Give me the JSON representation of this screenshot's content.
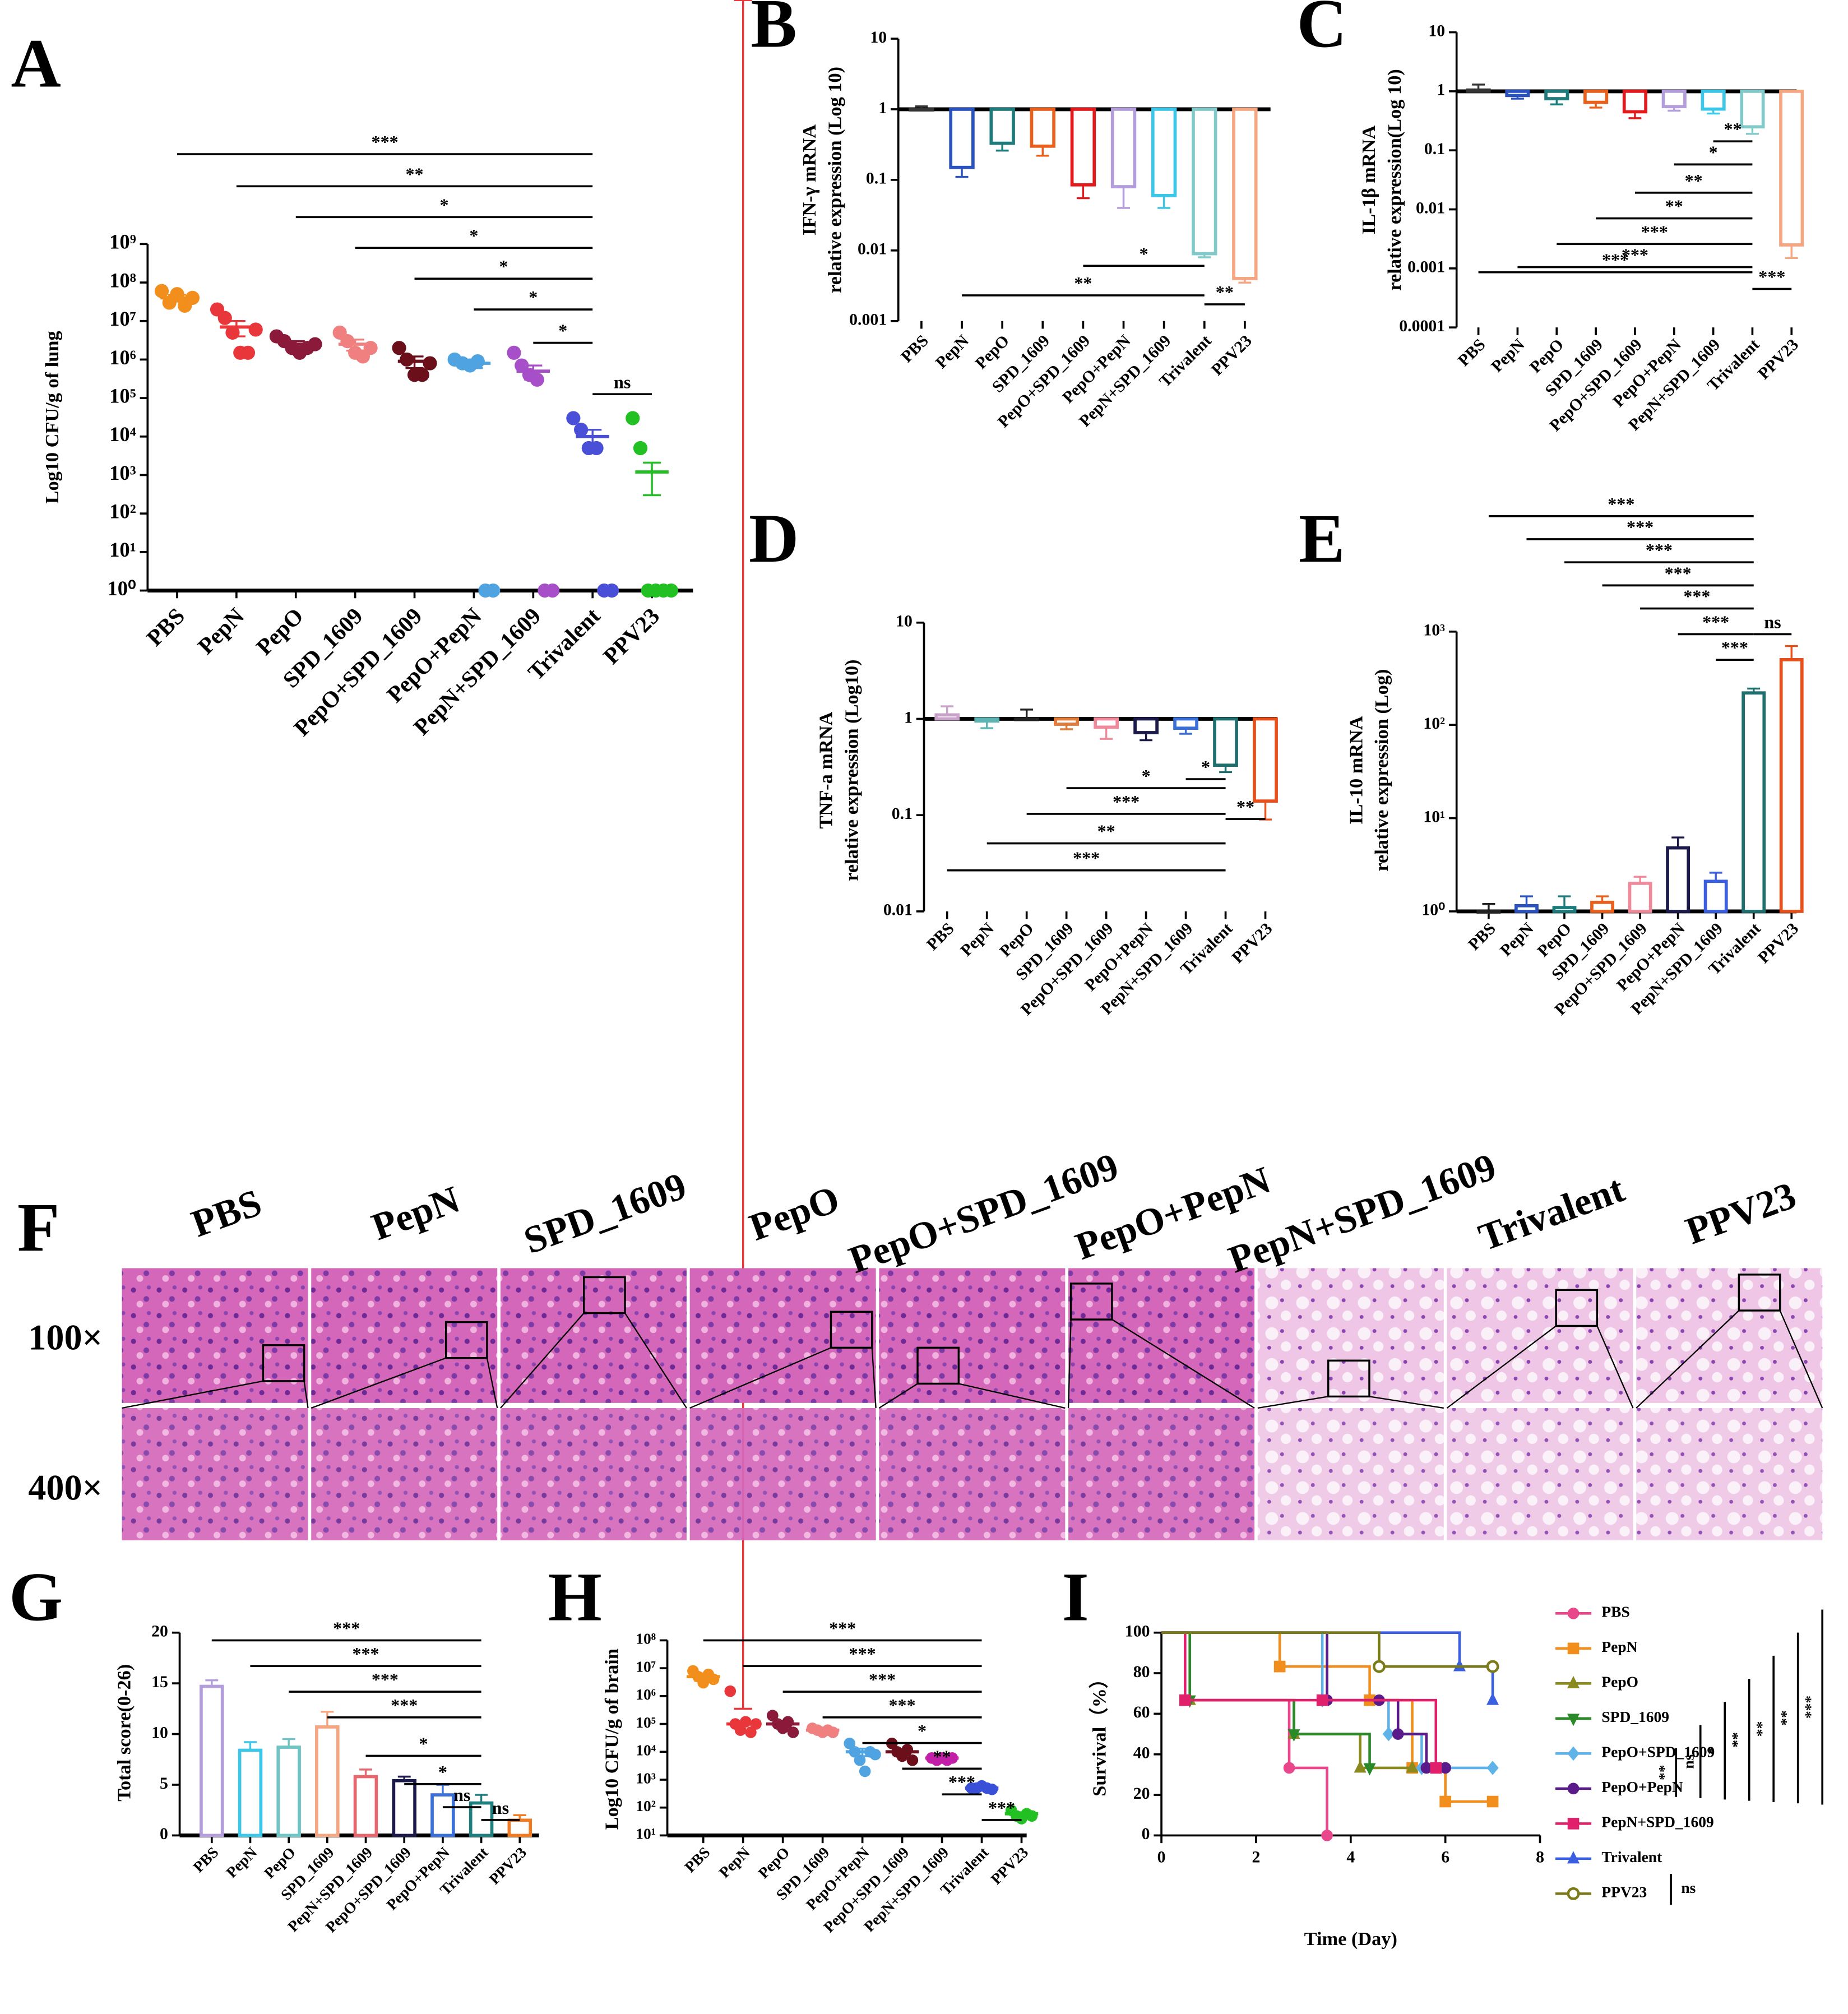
{
  "chart_data": [
    {
      "panel": "A",
      "type": "scatter",
      "ylabel": "Log10 CFU/g of lung",
      "log": true,
      "categories": [
        "PBS",
        "PepN",
        "PepO",
        "SPD_1609",
        "PepO+SPD_1609",
        "PepO+PepN",
        "PepN+SPD_1609",
        "Trivalent",
        "PPV23"
      ],
      "colors": [
        "#f28e1c",
        "#e8363a",
        "#8b1a3a",
        "#f08080",
        "#6b0f1a",
        "#4fa3e0",
        "#a64fc8",
        "#4a4fd8",
        "#22c022"
      ],
      "values": [
        40000000.0,
        7000000.0,
        2500000.0,
        2500000.0,
        900000.0,
        800000.0,
        500000.0,
        10000.0,
        1200.0
      ],
      "errors": [
        8000000.0,
        3000000.0,
        500000.0,
        800000.0,
        300000.0,
        200000.0,
        200000.0,
        5000.0,
        900
      ],
      "points": [
        [
          60000000.0,
          30000000.0,
          50000000.0,
          25000000.0,
          40000000.0
        ],
        [
          20000000.0,
          12000000.0,
          5000000.0,
          1500000.0,
          1500000.0,
          6000000.0
        ],
        [
          4000000.0,
          3000000.0,
          2000000.0,
          1500000.0,
          2000000.0,
          2500000.0
        ],
        [
          5000000.0,
          3000000.0,
          1500000.0,
          1200000.0,
          2000000.0
        ],
        [
          2000000.0,
          1000000.0,
          400000.0,
          400000.0,
          800000.0
        ],
        [
          1000000.0,
          800000.0,
          700000.0,
          900000.0,
          1,
          1
        ],
        [
          1500000.0,
          700000.0,
          400000.0,
          300000.0,
          1,
          1
        ],
        [
          30000.0,
          15000.0,
          5000.0,
          5000.0,
          1,
          1
        ],
        [
          30000.0,
          5000.0,
          1,
          1,
          1,
          1
        ]
      ],
      "ylim": [
        1,
        1000000000.0
      ],
      "yticks": [
        {
          "value": 1,
          "label": "10⁰"
        },
        {
          "value": 10,
          "label": "10¹"
        },
        {
          "value": 100,
          "label": "10²"
        },
        {
          "value": 1000,
          "label": "10³"
        },
        {
          "value": 10000.0,
          "label": "10⁴"
        },
        {
          "value": 100000.0,
          "label": "10⁵"
        },
        {
          "value": 1000000.0,
          "label": "10⁶"
        },
        {
          "value": 10000000.0,
          "label": "10⁷"
        },
        {
          "value": 100000000.0,
          "label": "10⁸"
        },
        {
          "value": 1000000000.0,
          "label": "10⁹"
        }
      ],
      "annotations": [
        {
          "label": "***",
          "from": 0,
          "to": 7
        },
        {
          "label": "**",
          "from": 1,
          "to": 7
        },
        {
          "label": "*",
          "from": 2,
          "to": 7
        },
        {
          "label": "*",
          "from": 3,
          "to": 7
        },
        {
          "label": "*",
          "from": 4,
          "to": 7
        },
        {
          "label": "*",
          "from": 5,
          "to": 7
        },
        {
          "label": "*",
          "from": 6,
          "to": 7
        },
        {
          "label": "ns",
          "from": 7,
          "to": 8
        }
      ]
    },
    {
      "panel": "B",
      "type": "bar",
      "ylabel": [
        "IFN-γ  mRNA",
        "relative expression (Log 10)"
      ],
      "log": true,
      "categories": [
        "PBS",
        "PepN",
        "PepO",
        "SPD_1609",
        "PepO+SPD_1609",
        "PepO+PepN",
        "PepN+SPD_1609",
        "Trivalent",
        "PPV23"
      ],
      "colors": [
        "#333333",
        "#2a52be",
        "#1e7b7b",
        "#e8601c",
        "#e31a1c",
        "#b39ddb",
        "#3cc6e8",
        "#82c9c9",
        "#f4a582"
      ],
      "values": [
        1.0,
        0.15,
        0.33,
        0.3,
        0.085,
        0.08,
        0.06,
        0.009,
        0.004
      ],
      "errors": [
        0.1,
        0.04,
        0.07,
        0.08,
        0.03,
        0.04,
        0.02,
        0.001,
        0.0005
      ],
      "ylim": [
        0.001,
        10
      ],
      "yticks": [
        10,
        1,
        0.1,
        0.01,
        0.001
      ],
      "annotations": [
        {
          "label": "*",
          "from": 4,
          "to": 7
        },
        {
          "label": "**",
          "from": 1,
          "to": 7
        },
        {
          "label": "**",
          "from": 7,
          "to": 8
        }
      ]
    },
    {
      "panel": "C",
      "type": "bar",
      "ylabel": [
        "IL-1β mRNA",
        "relative expression(Log 10)"
      ],
      "log": true,
      "categories": [
        "PBS",
        "PepN",
        "PepO",
        "SPD_1609",
        "PepO+SPD_1609",
        "PepO+PepN",
        "PepN+SPD_1609",
        "Trivalent",
        "PPV23"
      ],
      "colors": [
        "#333333",
        "#2a52be",
        "#1e7b7b",
        "#e8601c",
        "#e31a1c",
        "#b39ddb",
        "#3cc6e8",
        "#82c9c9",
        "#f4a582"
      ],
      "values": [
        1.05,
        0.85,
        0.75,
        0.65,
        0.45,
        0.55,
        0.5,
        0.25,
        0.0025
      ],
      "errors": [
        0.25,
        0.1,
        0.15,
        0.12,
        0.1,
        0.08,
        0.08,
        0.06,
        0.001
      ],
      "ylim": [
        0.0001,
        10
      ],
      "yticks": [
        10,
        1,
        0.1,
        0.01,
        0.001,
        0.0001
      ],
      "annotations": [
        {
          "label": "**",
          "from": 6,
          "to": 7
        },
        {
          "label": "*",
          "from": 5,
          "to": 7
        },
        {
          "label": "**",
          "from": 4,
          "to": 7
        },
        {
          "label": "**",
          "from": 3,
          "to": 7
        },
        {
          "label": "***",
          "from": 2,
          "to": 7
        },
        {
          "label": "***",
          "from": 1,
          "to": 7
        },
        {
          "label": "***",
          "from": 0,
          "to": 7
        },
        {
          "label": "***",
          "from": 7,
          "to": 8
        }
      ]
    },
    {
      "panel": "D",
      "type": "bar",
      "ylabel": [
        "TNF-a  mRNA",
        "relative expression (Log10)"
      ],
      "log": true,
      "categories": [
        "PBS",
        "PepN",
        "PepO",
        "SPD_1609",
        "PepO+SPD_1609",
        "PepO+PepN",
        "PepN+SPD_1609",
        "Trivalent",
        "PPV23"
      ],
      "colors": [
        "#c8a2c8",
        "#5fb3b3",
        "#222222",
        "#e07b39",
        "#f08a9a",
        "#1b1a4b",
        "#3a6fd8",
        "#1f6f6f",
        "#e8501b"
      ],
      "values": [
        1.1,
        0.95,
        1.0,
        0.88,
        0.82,
        0.72,
        0.8,
        0.33,
        0.14
      ],
      "errors": [
        0.25,
        0.15,
        0.25,
        0.1,
        0.2,
        0.12,
        0.1,
        0.05,
        0.05
      ],
      "ylim": [
        0.01,
        10
      ],
      "yticks": [
        10,
        1,
        0.1,
        0.01
      ],
      "annotations": [
        {
          "label": "*",
          "from": 6,
          "to": 7
        },
        {
          "label": "*",
          "from": 3,
          "to": 7
        },
        {
          "label": "***",
          "from": 2,
          "to": 7
        },
        {
          "label": "**",
          "from": 1,
          "to": 7
        },
        {
          "label": "***",
          "from": 0,
          "to": 7
        },
        {
          "label": "**",
          "from": 7,
          "to": 8
        }
      ]
    },
    {
      "panel": "E",
      "type": "bar",
      "ylabel": [
        "IL-10 mRNA",
        "relative expression (Log)"
      ],
      "log": true,
      "categories": [
        "PBS",
        "PepN",
        "PepO",
        "SPD_1609",
        "PepO+SPD_1609",
        "PepO+PepN",
        "PepN+SPD_1609",
        "Trivalent",
        "PPV23"
      ],
      "colors": [
        "#222222",
        "#2a52be",
        "#1e7b7b",
        "#e8601c",
        "#f08a9a",
        "#1b1a4b",
        "#3a5fe0",
        "#1f6f6f",
        "#e8501b"
      ],
      "values": [
        1.0,
        1.15,
        1.1,
        1.25,
        2.0,
        4.8,
        2.1,
        220,
        500
      ],
      "errors": [
        0.2,
        0.3,
        0.35,
        0.2,
        0.35,
        1.4,
        0.5,
        25,
        200
      ],
      "ylim": [
        1,
        1000
      ],
      "yticks": [
        {
          "value": 1,
          "label": "10⁰"
        },
        {
          "value": 10,
          "label": "10¹"
        },
        {
          "value": 100,
          "label": "10²"
        },
        {
          "value": 1000,
          "label": "10³"
        }
      ],
      "annotations": [
        {
          "label": "***",
          "from": 0,
          "to": 7
        },
        {
          "label": "***",
          "from": 1,
          "to": 7
        },
        {
          "label": "***",
          "from": 2,
          "to": 7
        },
        {
          "label": "***",
          "from": 3,
          "to": 7
        },
        {
          "label": "***",
          "from": 4,
          "to": 7
        },
        {
          "label": "***",
          "from": 5,
          "to": 7
        },
        {
          "label": "***",
          "from": 6,
          "to": 7
        },
        {
          "label": "ns",
          "from": 7,
          "to": 8
        }
      ]
    },
    {
      "panel": "G",
      "type": "bar",
      "ylabel": "Total score(0-26)",
      "log": false,
      "categories": [
        "PBS",
        "PepN",
        "PepO",
        "SPD_1609",
        "PepN+SPD_1609",
        "PepO+SPD_1609",
        "PepO+PepN",
        "Trivalent",
        "PPV23"
      ],
      "colors": [
        "#b39ddb",
        "#3cc6e8",
        "#6fc5c5",
        "#f4a582",
        "#e8676f",
        "#1b1a4b",
        "#3a6fd8",
        "#1f7f7f",
        "#f07b22"
      ],
      "values": [
        14.7,
        8.4,
        8.7,
        10.7,
        5.8,
        5.4,
        4.0,
        3.2,
        1.5
      ],
      "errors": [
        0.6,
        0.8,
        0.8,
        1.5,
        0.7,
        0.4,
        1.0,
        0.8,
        0.5
      ],
      "ylim": [
        0,
        20
      ],
      "yticks": [
        0,
        5,
        10,
        15,
        20
      ],
      "annotations": [
        {
          "label": "***",
          "from": 0,
          "to": 7
        },
        {
          "label": "***",
          "from": 1,
          "to": 7
        },
        {
          "label": "***",
          "from": 2,
          "to": 7
        },
        {
          "label": "***",
          "from": 3,
          "to": 7
        },
        {
          "label": "*",
          "from": 4,
          "to": 7
        },
        {
          "label": "*",
          "from": 5,
          "to": 7
        },
        {
          "label": "ns",
          "from": 6,
          "to": 7
        },
        {
          "label": "ns",
          "from": 7,
          "to": 8
        }
      ]
    },
    {
      "panel": "H",
      "type": "scatter",
      "ylabel": "Log10 CFU/g of brain",
      "log": true,
      "categories": [
        "PBS",
        "PepN",
        "PepO",
        "SPD_1609",
        "PepO+PepN",
        "PepO+SPD_1609",
        "PepN+SPD_1609",
        "Trivalent",
        "PPV23"
      ],
      "colors": [
        "#f28e1c",
        "#e8363a",
        "#8b1a3a",
        "#f08080",
        "#4fa3e0",
        "#6b0f1a",
        "#c21fa8",
        "#3a4fd8",
        "#22c022"
      ],
      "values": [
        5000000.0,
        100000.0,
        100000.0,
        60000.0,
        10000.0,
        10000.0,
        6000.0,
        500,
        60
      ],
      "errors": [
        1500000.0,
        250000.0,
        25000.0,
        5000.0,
        3000.0,
        2500.0,
        400,
        30,
        8
      ],
      "points": [
        [
          8000000.0,
          5000000.0,
          3000000.0,
          6000000.0,
          4000000.0
        ],
        [
          1500000.0,
          100000.0,
          60000.0,
          120000.0,
          50000.0,
          100000.0
        ],
        [
          200000.0,
          100000.0,
          70000.0,
          120000.0,
          50000.0
        ],
        [
          70000.0,
          60000.0,
          50000.0,
          60000.0,
          50000.0
        ],
        [
          20000.0,
          10000.0,
          5000.0,
          2000.0,
          10000.0,
          8000.0
        ],
        [
          20000.0,
          10000.0,
          7000.0,
          12000.0,
          5000.0
        ],
        [
          6000.0,
          5000.0,
          6000.0,
          5000.0,
          6000.0
        ],
        [
          500,
          500,
          600,
          500,
          450
        ],
        [
          80,
          50,
          40,
          60,
          50
        ]
      ],
      "ylim": [
        10,
        100000000.0
      ],
      "yticks": [
        {
          "value": 10,
          "label": "10¹"
        },
        {
          "value": 100,
          "label": "10²"
        },
        {
          "value": 1000,
          "label": "10³"
        },
        {
          "value": 10000.0,
          "label": "10⁴"
        },
        {
          "value": 100000.0,
          "label": "10⁵"
        },
        {
          "value": 1000000.0,
          "label": "10⁶"
        },
        {
          "value": 10000000.0,
          "label": "10⁷"
        },
        {
          "value": 100000000.0,
          "label": "10⁸"
        }
      ],
      "annotations": [
        {
          "label": "***",
          "from": 0,
          "to": 7
        },
        {
          "label": "***",
          "from": 1,
          "to": 7
        },
        {
          "label": "***",
          "from": 2,
          "to": 7
        },
        {
          "label": "***",
          "from": 3,
          "to": 7
        },
        {
          "label": "*",
          "from": 4,
          "to": 7
        },
        {
          "label": "**",
          "from": 5,
          "to": 7
        },
        {
          "label": "***",
          "from": 6,
          "to": 7
        },
        {
          "label": "***",
          "from": 7,
          "to": 8
        }
      ]
    },
    {
      "panel": "I",
      "type": "line",
      "drawstyle": "steps-post",
      "ylabel": "Survival（%）",
      "xlabel": "Time (Day)",
      "log": false,
      "xlim": [
        0,
        8
      ],
      "xticks": [
        0,
        2,
        4,
        6,
        8
      ],
      "ylim": [
        0,
        100
      ],
      "yticks": [
        0,
        20,
        40,
        60,
        80,
        100
      ],
      "series": [
        {
          "name": "PBS",
          "color": "#e8478b",
          "marker": "circle",
          "x": [
            0,
            0.5,
            2.7,
            3.5
          ],
          "values": [
            100,
            66.7,
            33.3,
            0
          ]
        },
        {
          "name": "PepN",
          "color": "#f28e1c",
          "marker": "square",
          "x": [
            0,
            2.5,
            4.4,
            5.3,
            6,
            7
          ],
          "values": [
            100,
            83.3,
            66.7,
            33.3,
            16.7,
            16.7
          ]
        },
        {
          "name": "PepO",
          "color": "#8a8a1f",
          "marker": "triangle",
          "x": [
            0,
            0.6,
            2.8,
            4.2,
            5.3
          ],
          "values": [
            100,
            66.7,
            50,
            33.3,
            33.3
          ]
        },
        {
          "name": "SPD_1609",
          "color": "#2a8a2a",
          "marker": "triangle-down",
          "x": [
            0,
            0.6,
            2.8,
            4.4
          ],
          "values": [
            100,
            66.7,
            50,
            33.3
          ]
        },
        {
          "name": "PepO+SPD_1609",
          "color": "#5fb3e8",
          "marker": "diamond",
          "x": [
            0,
            3.4,
            4.8,
            5.5,
            7
          ],
          "values": [
            100,
            66.7,
            50,
            33.3,
            33.3
          ]
        },
        {
          "name": "PepO+PepN",
          "color": "#5a1a8a",
          "marker": "circle",
          "x": [
            0,
            3.5,
            4.6,
            5,
            5.6,
            6
          ],
          "values": [
            100,
            66.7,
            66.7,
            50,
            33.3,
            33.3
          ]
        },
        {
          "name": "PepN+SPD_1609",
          "color": "#e0206b",
          "marker": "square",
          "x": [
            0,
            0.5,
            3.4,
            5.8
          ],
          "values": [
            100,
            66.7,
            66.7,
            33.3
          ]
        },
        {
          "name": "Trivalent",
          "color": "#3a5fe0",
          "marker": "triangle",
          "x": [
            0,
            6.3,
            7
          ],
          "values": [
            100,
            83.3,
            66.7
          ]
        },
        {
          "name": "PPV23",
          "color": "#7a7a1a",
          "marker": "circle-open",
          "x": [
            0,
            4.6,
            7
          ],
          "values": [
            100,
            83.3,
            83.3
          ]
        }
      ],
      "legend_annotations": [
        "**",
        "ns",
        "*",
        "**",
        "**",
        "**",
        "***",
        "ns"
      ]
    }
  ],
  "histology": {
    "panel": "F",
    "columns": [
      "PBS",
      "PepN",
      "SPD_1609",
      "PepO",
      "PepO+SPD_1609",
      "PepO+PepN",
      "PepN+SPD_1609",
      "Trivalent",
      "PPV23"
    ],
    "rows": [
      "100×",
      "400×"
    ]
  }
}
